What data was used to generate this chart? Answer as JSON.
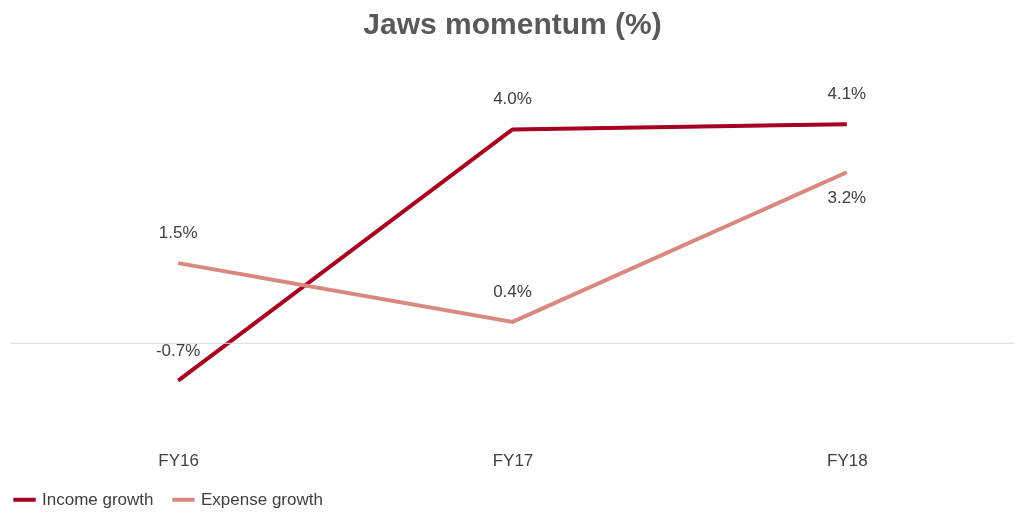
{
  "chart_data": {
    "type": "line",
    "title": "Jaws momentum (%)",
    "categories": [
      "FY16",
      "FY17",
      "FY18"
    ],
    "series": [
      {
        "name": "Income growth",
        "color": "#a50021",
        "values": [
          -0.7,
          4.0,
          4.1
        ],
        "value_labels": [
          "-0.7%",
          "4.0%",
          "4.1%"
        ]
      },
      {
        "name": "Expense growth",
        "color": "#d98880",
        "values": [
          1.5,
          0.4,
          3.2
        ],
        "value_labels": [
          "1.5%",
          "0.4%",
          "3.2%"
        ]
      }
    ],
    "legend": "bottom",
    "grid": false,
    "marker": "none",
    "line_style": "solid"
  }
}
